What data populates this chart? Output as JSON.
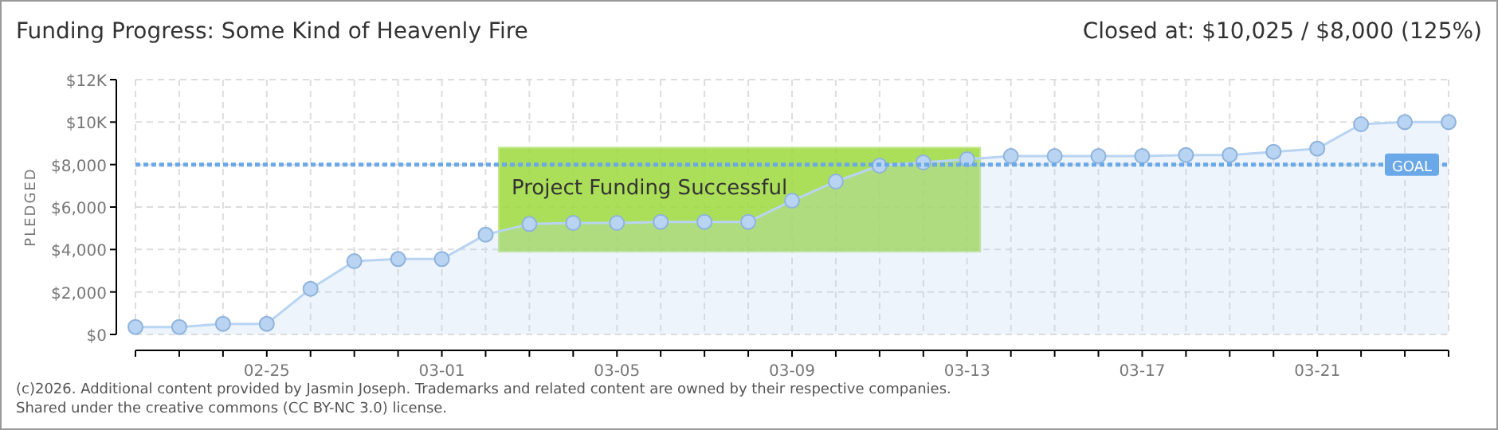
{
  "chart_data": {
    "type": "area",
    "title": "Funding Progress: Some Kind of Heavenly Fire",
    "subtitle": "Closed at: $10,025 / $8,000 (125%)",
    "ylabel": "PLEDGED",
    "categories": [
      null,
      null,
      null,
      "02-25",
      null,
      null,
      null,
      "03-01",
      null,
      null,
      null,
      "03-05",
      null,
      null,
      null,
      "03-09",
      null,
      null,
      null,
      "03-13",
      null,
      null,
      null,
      "03-17",
      null,
      null,
      null,
      "03-21",
      null,
      null,
      null
    ],
    "series": [
      {
        "color": "#b8d4f2",
        "values": [
          350,
          350,
          500,
          500,
          2150,
          3450,
          3550,
          3550,
          4700,
          5200,
          5250,
          5250,
          5300,
          5300,
          5300,
          6300,
          7200,
          7950,
          8100,
          8250,
          8400,
          8400,
          8400,
          8400,
          8450,
          8450,
          8600,
          8750,
          9900,
          10000,
          10000
        ]
      }
    ],
    "ylim": [
      0,
      12000
    ],
    "yticks": [
      {
        "value": 0,
        "label": "$0"
      },
      {
        "value": 2000,
        "label": "$2,000"
      },
      {
        "value": 4000,
        "label": "$4,000"
      },
      {
        "value": 6000,
        "label": "$6,000"
      },
      {
        "value": 8000,
        "label": "$8,000"
      },
      {
        "value": 10000,
        "label": "$10K"
      },
      {
        "value": 12000,
        "label": "$12K"
      }
    ],
    "ref_lines": [
      {
        "axis": "y",
        "value": 8000,
        "label": "GOAL",
        "color": "#6aa8e8",
        "line_style": "dotted"
      }
    ],
    "annotations": [
      "Project Funding Successful",
      "(c)2026. Additional content provided by Jasmin Joseph. Trademarks and related content are owned by their respective companies.",
      "Shared under the creative commons (CC BY-NC 3.0) license."
    ],
    "grid": true,
    "marker": "circle"
  }
}
